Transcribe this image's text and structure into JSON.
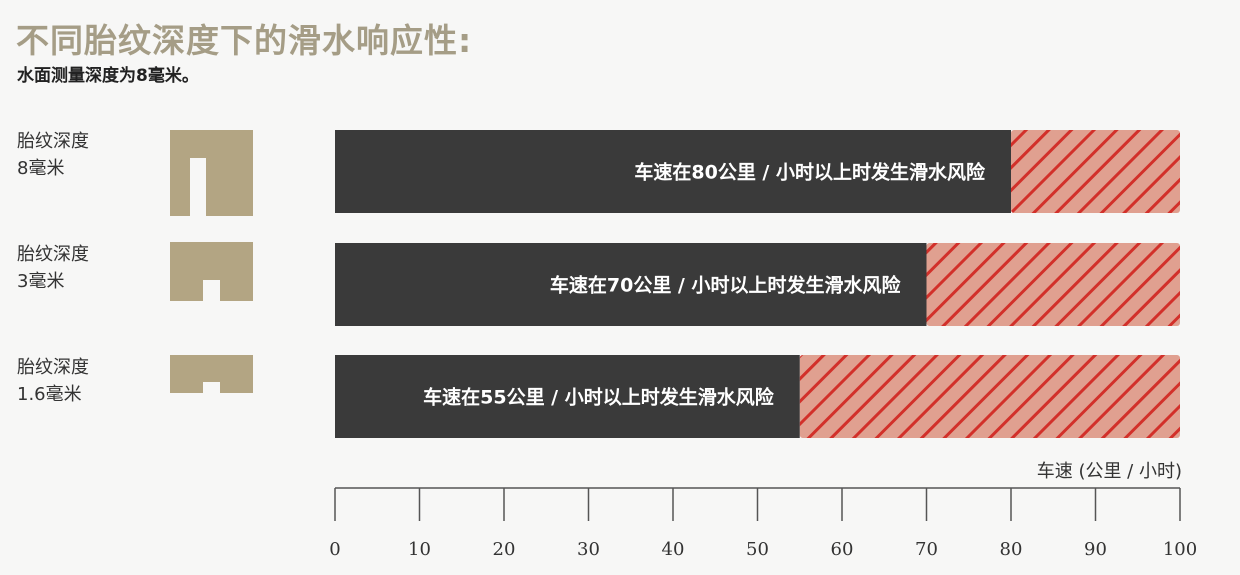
{
  "chart_data": {
    "type": "bar",
    "title": "不同胎纹深度下的滑水响应性:",
    "subtitle": "水面测量深度为8毫米。",
    "xlabel": "车速 (公里 / 小时)",
    "xlim": [
      0,
      100
    ],
    "xticks": [
      "0",
      "10",
      "20",
      "30",
      "40",
      "50",
      "60",
      "70",
      "80",
      "90",
      "100"
    ],
    "categories": [
      {
        "line1": "胎纹深度",
        "line2": "8毫米",
        "depth_mm": 8
      },
      {
        "line1": "胎纹深度",
        "line2": "3毫米",
        "depth_mm": 3
      },
      {
        "line1": "胎纹深度",
        "line2": "1.6毫米",
        "depth_mm": 1.6
      }
    ],
    "values": [
      80,
      70,
      55
    ],
    "bar_labels": [
      "车速在80公里 / 小时以上时发生滑水风险",
      "车速在70公里 / 小时以上时发生滑水风险",
      "车速在55公里 / 小时以上时发生滑水风险"
    ],
    "colors": {
      "safe": "#3a3a3a",
      "risk_fill": "#e0a090",
      "risk_stripe": "#d2302a",
      "tread": "#b3a583",
      "title": "#a59d86"
    },
    "grid": false
  }
}
